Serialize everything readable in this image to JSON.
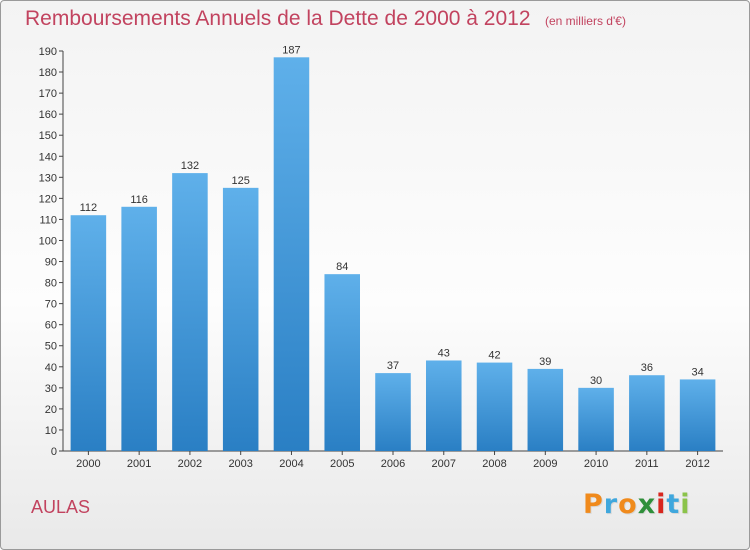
{
  "header": {
    "title": "Remboursements Annuels de la Dette de 2000 à 2012",
    "unit": "(en milliers d'€)"
  },
  "footer": {
    "location": "AULAS",
    "logo_text": "Proxiti"
  },
  "colors": {
    "title": "#c2435f",
    "bar_top": "#5fb0ea",
    "bar_bottom": "#2a7fc4"
  },
  "chart_data": {
    "type": "bar",
    "categories": [
      "2000",
      "2001",
      "2002",
      "2003",
      "2004",
      "2005",
      "2006",
      "2007",
      "2008",
      "2009",
      "2010",
      "2011",
      "2012"
    ],
    "values": [
      112,
      116,
      132,
      125,
      187,
      84,
      37,
      43,
      42,
      39,
      30,
      36,
      34
    ],
    "ylim": [
      0,
      190
    ],
    "yticks": [
      0,
      10,
      20,
      30,
      40,
      50,
      60,
      70,
      80,
      90,
      100,
      110,
      120,
      130,
      140,
      150,
      160,
      170,
      180,
      190
    ],
    "grid": false,
    "xlabel": "",
    "ylabel": ""
  }
}
